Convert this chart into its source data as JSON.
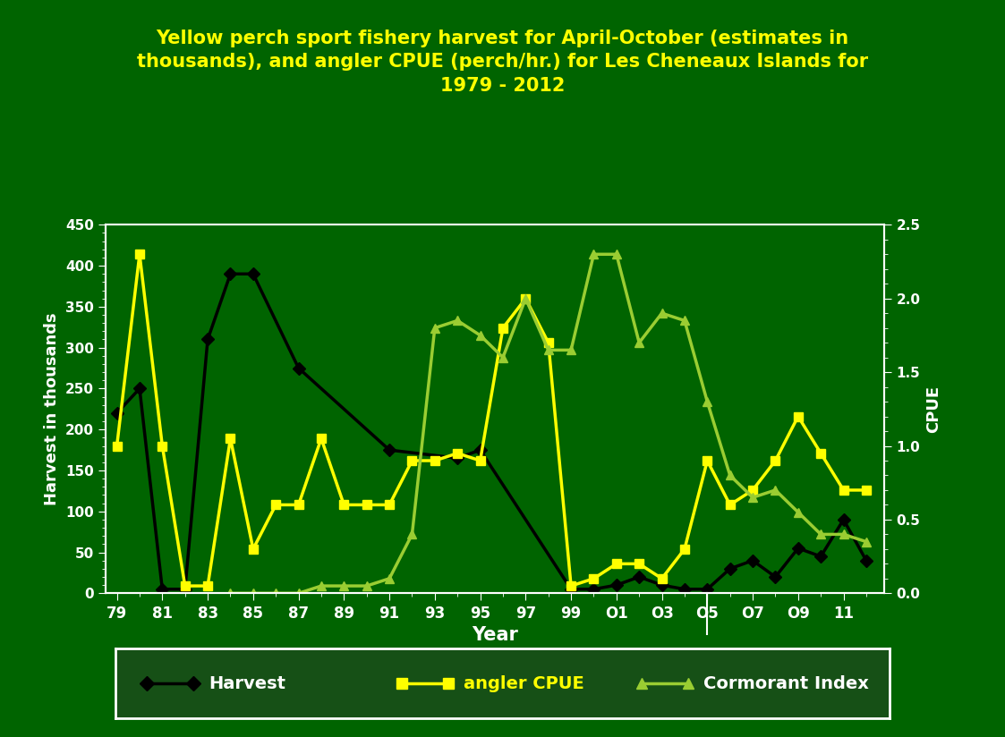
{
  "title": "Yellow perch sport fishery harvest for April-October (estimates in\nthousands), and angler CPUE (perch/hr.) for Les Cheneaux Islands for\n1979 - 2012",
  "title_color": "#FFFF00",
  "background_color": "#006400",
  "plot_background_color": "#006400",
  "xlabel": "Year",
  "ylabel_left": "Harvest in thousands",
  "ylabel_right": "CPUE",
  "xlabel_color": "#FFFFFF",
  "ylabel_color": "#FFFFFF",
  "xtick_labels": [
    "79",
    "81",
    "83",
    "85",
    "87",
    "89",
    "91",
    "93",
    "95",
    "97",
    "99",
    "O1",
    "O3",
    "O5",
    "O7",
    "O9",
    "11"
  ],
  "xtick_positions": [
    1979,
    1981,
    1983,
    1985,
    1987,
    1989,
    1991,
    1993,
    1995,
    1997,
    1999,
    2001,
    2003,
    2005,
    2007,
    2009,
    2011
  ],
  "harvest_years": [
    1979,
    1980,
    1981,
    1982,
    1983,
    1984,
    1985,
    1987,
    1991,
    1994,
    1995,
    1999,
    2000,
    2001,
    2002,
    2003,
    2004,
    2005,
    2006,
    2007,
    2008,
    2009,
    2010,
    2011,
    2012
  ],
  "harvest_vals": [
    220,
    250,
    5,
    5,
    310,
    390,
    390,
    275,
    175,
    165,
    175,
    5,
    5,
    10,
    20,
    10,
    5,
    5,
    30,
    40,
    20,
    55,
    45,
    90,
    40
  ],
  "cpue_years": [
    1979,
    1980,
    1981,
    1982,
    1983,
    1984,
    1985,
    1986,
    1987,
    1988,
    1989,
    1990,
    1991,
    1992,
    1993,
    1994,
    1995,
    1996,
    1997,
    1998,
    1999,
    2000,
    2001,
    2002,
    2003,
    2004,
    2005,
    2006,
    2007,
    2008,
    2009,
    2010,
    2011,
    2012
  ],
  "cpue_vals": [
    1.0,
    2.3,
    1.0,
    0.05,
    0.05,
    1.05,
    0.3,
    0.6,
    0.6,
    1.05,
    0.6,
    0.6,
    0.6,
    0.9,
    0.9,
    0.95,
    0.9,
    1.8,
    2.0,
    1.7,
    0.05,
    0.1,
    0.2,
    0.2,
    0.1,
    0.3,
    0.9,
    0.6,
    0.7,
    0.9,
    1.2,
    0.95,
    0.7,
    0.7
  ],
  "cormorant_years": [
    1984,
    1985,
    1986,
    1987,
    1988,
    1989,
    1990,
    1991,
    1992,
    1993,
    1994,
    1995,
    1996,
    1997,
    1998,
    1999,
    2000,
    2001,
    2002,
    2003,
    2004,
    2005,
    2006,
    2007,
    2008,
    2009,
    2010,
    2011,
    2012
  ],
  "cormorant_vals": [
    0.0,
    0.0,
    0.0,
    0.0,
    0.05,
    0.05,
    0.05,
    0.1,
    0.4,
    1.8,
    1.85,
    1.75,
    1.6,
    2.0,
    1.65,
    1.65,
    2.3,
    2.3,
    1.7,
    1.9,
    1.85,
    1.3,
    0.8,
    0.65,
    0.7,
    0.55,
    0.4,
    0.4,
    0.35
  ],
  "harvest_color": "#000000",
  "cpue_color": "#FFFF00",
  "cormorant_color": "#9ACD32",
  "ylim_left": [
    0,
    450
  ],
  "ylim_right": [
    0,
    2.5
  ],
  "yticks_left": [
    0,
    50,
    100,
    150,
    200,
    250,
    300,
    350,
    400,
    450
  ],
  "yticks_right": [
    0,
    0.5,
    1.0,
    1.5,
    2.0,
    2.5
  ],
  "legend_labels": [
    "Harvest",
    "angler CPUE",
    "Cormorant Index"
  ],
  "legend_text_colors": [
    "#FFFFFF",
    "#FFFF00",
    "#FFFFFF"
  ],
  "legend_line_colors": [
    "#000000",
    "#FFFF00",
    "#9ACD32"
  ],
  "legend_bg": "#165016",
  "legend_text_color": "#FFFFFF",
  "tick_color": "#FFFFFF",
  "spine_color": "#FFFFFF"
}
